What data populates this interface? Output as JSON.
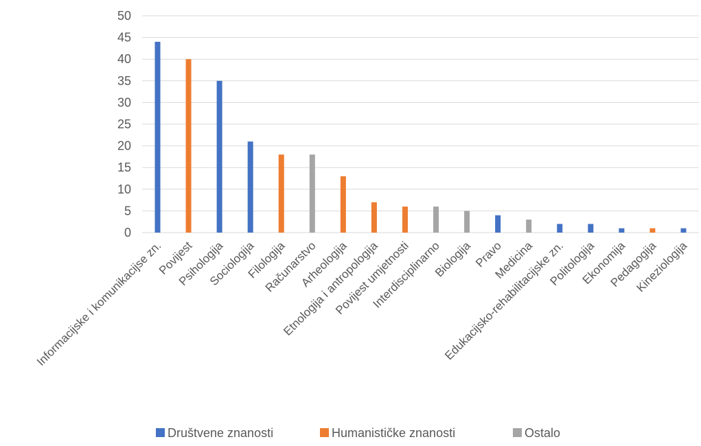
{
  "chart_data": {
    "type": "bar",
    "title": "",
    "xlabel": "",
    "ylabel": "",
    "ylim": [
      0,
      50
    ],
    "yticks": [
      0,
      5,
      10,
      15,
      20,
      25,
      30,
      35,
      40,
      45,
      50
    ],
    "grid": true,
    "legend_position": "bottom",
    "categories": [
      "Informacijske i komunikacijse zn.",
      "Povijest",
      "Psihologija",
      "Sociologija",
      "Filologija",
      "Računarstvo",
      "Arheologija",
      "Etnologija i antropologija",
      "Povijest umjetnosti",
      "Interdisciplinarno",
      "Biologija",
      "Pravo",
      "Medicina",
      "Edukacijsko-rehabilitacijske zn.",
      "Politologija",
      "Ekonomija",
      "Pedagogija",
      "Kineziologija"
    ],
    "values": [
      44,
      40,
      35,
      21,
      18,
      18,
      13,
      7,
      6,
      6,
      5,
      4,
      3,
      2,
      2,
      1,
      1,
      1
    ],
    "groups": [
      0,
      1,
      0,
      0,
      1,
      2,
      1,
      1,
      1,
      2,
      2,
      0,
      2,
      0,
      0,
      0,
      1,
      0
    ],
    "series": [
      {
        "name": "Društvene znanosti",
        "color": "#4472C4"
      },
      {
        "name": "Humanističke znanosti",
        "color": "#ED7D31"
      },
      {
        "name": "Ostalo",
        "color": "#A5A5A5"
      }
    ]
  }
}
